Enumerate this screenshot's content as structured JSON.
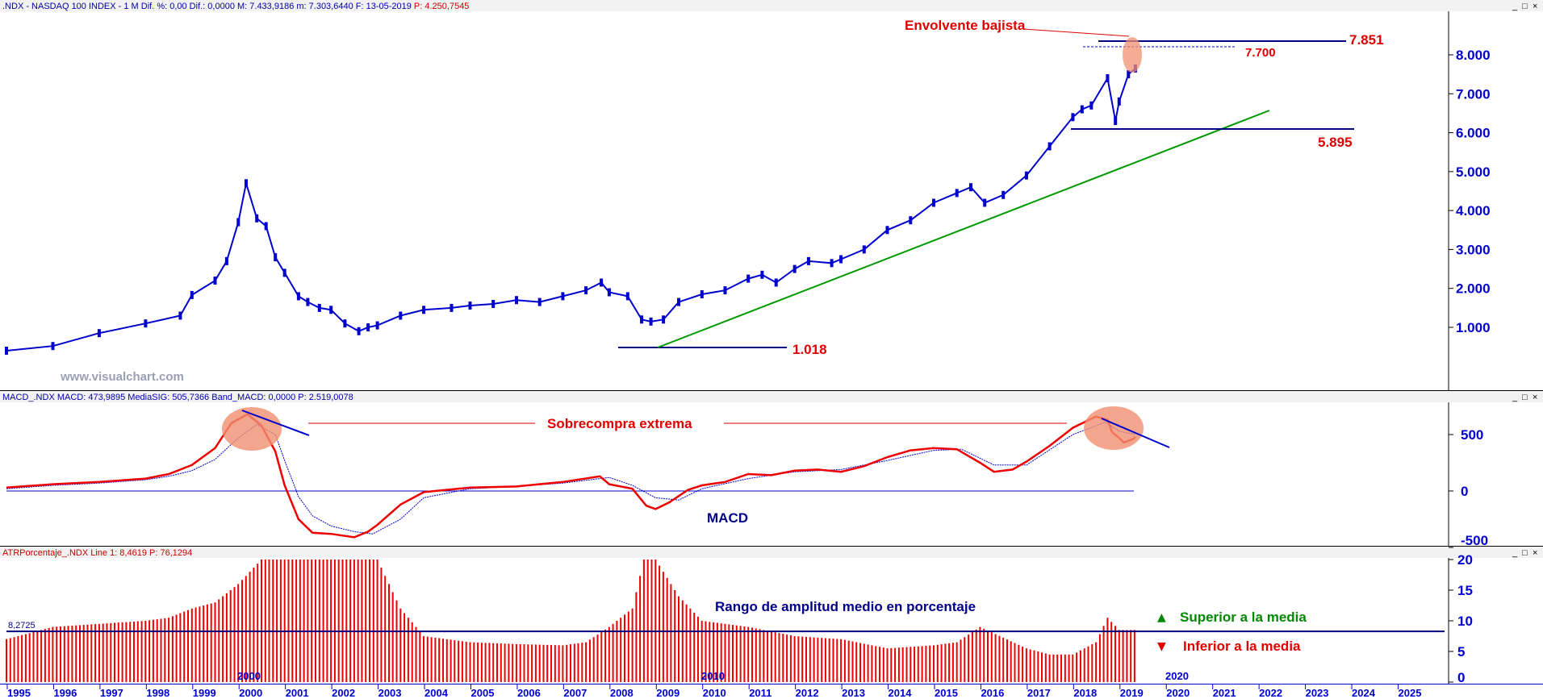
{
  "panels": {
    "price": {
      "header": ".NDX - NASDAQ 100 INDEX -  1 M  Dif. %: 0,00  Dif.: 0,0000  M: 7.433,9186  m: 7.303,6440  F: 13-05-2019",
      "header_p": "P: 4.250,7545"
    },
    "macd": {
      "header": "MACD_.NDX  MACD: 473,9895  MediaSIG: 505,7366  Band_MACD: 0,0000  P: 2.519,0078"
    },
    "atr": {
      "header": "ATRPorcentaje_.NDX  Line 1: 8,4619  P: 76,1294"
    }
  },
  "watermark": "www.visualchart.com",
  "window_buttons": [
    "_",
    "□",
    "×"
  ],
  "annotations": {
    "bearish_engulfing": "Envolvente bajista",
    "level_7851": "7.851",
    "level_7700": "7.700",
    "level_5895": "5.895",
    "level_1018": "1.018",
    "extreme_overbought": "Sobrecompra extrema",
    "macd_label": "MACD",
    "atr_title": "Rango de amplitud medio en porcentaje",
    "atr_mean_value": "8,2725",
    "above_mean": "Superior a la media",
    "below_mean": "Inferior a la media",
    "year_2000_inner": "2000",
    "year_2010_inner": "2010",
    "year_2020_inner": "2020",
    "up_arrow_icon": "▲",
    "down_arrow_icon": "▼"
  },
  "colors": {
    "price": "#0000cc",
    "macd_line": "#ee0000",
    "signal": "#0000cc",
    "atr_bar": "#ee0000",
    "trendline": "#009900",
    "highlight": "#f09070"
  },
  "chart_data": [
    {
      "type": "line",
      "panel": "price",
      "series": [
        {
          "name": ".NDX",
          "x": [
            1995.0,
            1996.0,
            1997.0,
            1998.0,
            1998.75,
            1999.0,
            1999.5,
            1999.75,
            2000.0,
            2000.17,
            2000.4,
            2000.6,
            2000.8,
            2001.0,
            2001.3,
            2001.5,
            2001.75,
            2002.0,
            2002.3,
            2002.6,
            2002.8,
            2003.0,
            2003.5,
            2004.0,
            2004.6,
            2005.0,
            2005.5,
            2006.0,
            2006.5,
            2007.0,
            2007.5,
            2007.83,
            2008.0,
            2008.4,
            2008.7,
            2008.9,
            2009.17,
            2009.5,
            2010.0,
            2010.5,
            2011.0,
            2011.3,
            2011.6,
            2012.0,
            2012.3,
            2012.8,
            2013.0,
            2013.5,
            2014.0,
            2014.5,
            2015.0,
            2015.5,
            2015.8,
            2016.1,
            2016.5,
            2017.0,
            2017.5,
            2018.0,
            2018.2,
            2018.4,
            2018.75,
            2018.92,
            2019.0,
            2019.2,
            2019.35
          ],
          "values": [
            400,
            520,
            850,
            1100,
            1300,
            1830,
            2200,
            2700,
            3700,
            4700,
            3800,
            3600,
            2800,
            2400,
            1800,
            1650,
            1500,
            1450,
            1100,
            900,
            1000,
            1050,
            1300,
            1450,
            1500,
            1560,
            1600,
            1700,
            1650,
            1800,
            1950,
            2150,
            1900,
            1800,
            1200,
            1150,
            1200,
            1650,
            1850,
            1950,
            2250,
            2350,
            2150,
            2500,
            2700,
            2650,
            2750,
            3000,
            3500,
            3750,
            4200,
            4450,
            4600,
            4200,
            4400,
            4900,
            5650,
            6400,
            6600,
            6700,
            7400,
            6300,
            6800,
            7500,
            7650
          ]
        }
      ],
      "level_lines": [
        7851,
        7700,
        5895,
        1018
      ],
      "ylim": [
        0,
        8500
      ],
      "yticks": [
        "1.000",
        "2.000",
        "3.000",
        "4.000",
        "5.000",
        "6.000",
        "7.000",
        "8.000"
      ],
      "xticks": [
        "1995",
        "1996",
        "1997",
        "1998",
        "1999",
        "2000",
        "2001",
        "2002",
        "2003",
        "2004",
        "2005",
        "2006",
        "2007",
        "2008",
        "2009",
        "2010",
        "2011",
        "2012",
        "2013",
        "2014",
        "2015",
        "2016",
        "2017",
        "2018",
        "2019",
        "2020",
        "2021",
        "2022",
        "2023",
        "2024",
        "2025"
      ]
    },
    {
      "type": "line",
      "panel": "macd",
      "series": [
        {
          "name": "MACD",
          "x": [
            1995.0,
            1996.0,
            1997.0,
            1998.0,
            1998.5,
            1999.0,
            1999.5,
            1999.85,
            2000.2,
            2000.5,
            2000.8,
            2001.0,
            2001.3,
            2001.6,
            2002.0,
            2002.5,
            2002.8,
            2003.0,
            2003.5,
            2004.0,
            2005.0,
            2006.0,
            2007.0,
            2007.8,
            2008.0,
            2008.5,
            2008.8,
            2009.0,
            2009.3,
            2009.7,
            2010.0,
            2010.5,
            2011.0,
            2011.5,
            2012.0,
            2012.5,
            2013.0,
            2013.5,
            2014.0,
            2014.5,
            2015.0,
            2015.5,
            2016.0,
            2016.3,
            2016.7,
            2017.0,
            2017.5,
            2018.0,
            2018.5,
            2018.75,
            2018.85,
            2019.0,
            2019.1,
            2019.3,
            2019.35
          ],
          "values": [
            30,
            60,
            80,
            110,
            150,
            230,
            380,
            600,
            680,
            580,
            350,
            50,
            -250,
            -370,
            -380,
            -410,
            -360,
            -300,
            -120,
            -10,
            30,
            40,
            80,
            130,
            60,
            20,
            -130,
            -160,
            -100,
            10,
            50,
            80,
            150,
            140,
            180,
            190,
            170,
            220,
            300,
            360,
            380,
            370,
            250,
            170,
            190,
            260,
            400,
            560,
            660,
            630,
            520,
            470,
            430,
            460,
            480
          ]
        },
        {
          "name": "MediaSIG",
          "x": [
            1995.0,
            1996.0,
            1997.0,
            1998.0,
            1998.5,
            1999.0,
            1999.5,
            2000.0,
            2000.4,
            2000.8,
            2001.0,
            2001.3,
            2001.6,
            2002.0,
            2002.5,
            2002.9,
            2003.5,
            2004.0,
            2005.0,
            2006.0,
            2007.0,
            2008.0,
            2008.5,
            2009.0,
            2009.5,
            2010.0,
            2011.0,
            2012.0,
            2013.0,
            2014.0,
            2015.0,
            2015.6,
            2016.3,
            2017.0,
            2018.0,
            2018.7,
            2019.0,
            2019.35
          ],
          "values": [
            20,
            50,
            70,
            100,
            130,
            180,
            280,
            470,
            590,
            500,
            270,
            -50,
            -220,
            -310,
            -360,
            -380,
            -250,
            -60,
            20,
            40,
            70,
            120,
            50,
            -60,
            -80,
            20,
            110,
            170,
            190,
            270,
            360,
            370,
            230,
            230,
            500,
            610,
            530,
            500
          ]
        }
      ],
      "ylim": [
        -500,
        800
      ],
      "yticks": [
        "-500",
        "0",
        "500"
      ]
    },
    {
      "type": "bar",
      "panel": "atr",
      "series": [
        {
          "name": "Line 1",
          "x": [
            1995.0,
            1996.0,
            1997.0,
            1998.0,
            1998.5,
            1999.0,
            1999.5,
            2000.0,
            2000.5,
            2001.0,
            2002.0,
            2003.0,
            2003.5,
            2004.0,
            2005.0,
            2006.0,
            2007.0,
            2007.5,
            2008.0,
            2008.5,
            2008.75,
            2009.0,
            2009.5,
            2010.0,
            2011.0,
            2012.0,
            2013.0,
            2014.0,
            2015.0,
            2015.5,
            2016.0,
            2017.0,
            2017.5,
            2018.0,
            2018.5,
            2018.75,
            2019.0,
            2019.35
          ],
          "values": [
            7,
            9,
            9.5,
            10,
            10.5,
            12,
            13,
            16,
            20,
            20,
            20,
            20,
            12,
            7.5,
            6.5,
            6.2,
            6,
            6.5,
            9,
            12,
            20,
            20,
            14,
            10,
            9,
            7.5,
            7,
            5.5,
            6,
            6.5,
            9,
            5.5,
            4.5,
            4.5,
            6.5,
            10.5,
            8.5,
            8.5
          ]
        }
      ],
      "mean": 8.2725,
      "ylim": [
        0,
        20
      ],
      "yticks": [
        "0",
        "5",
        "10",
        "15",
        "20"
      ]
    }
  ]
}
